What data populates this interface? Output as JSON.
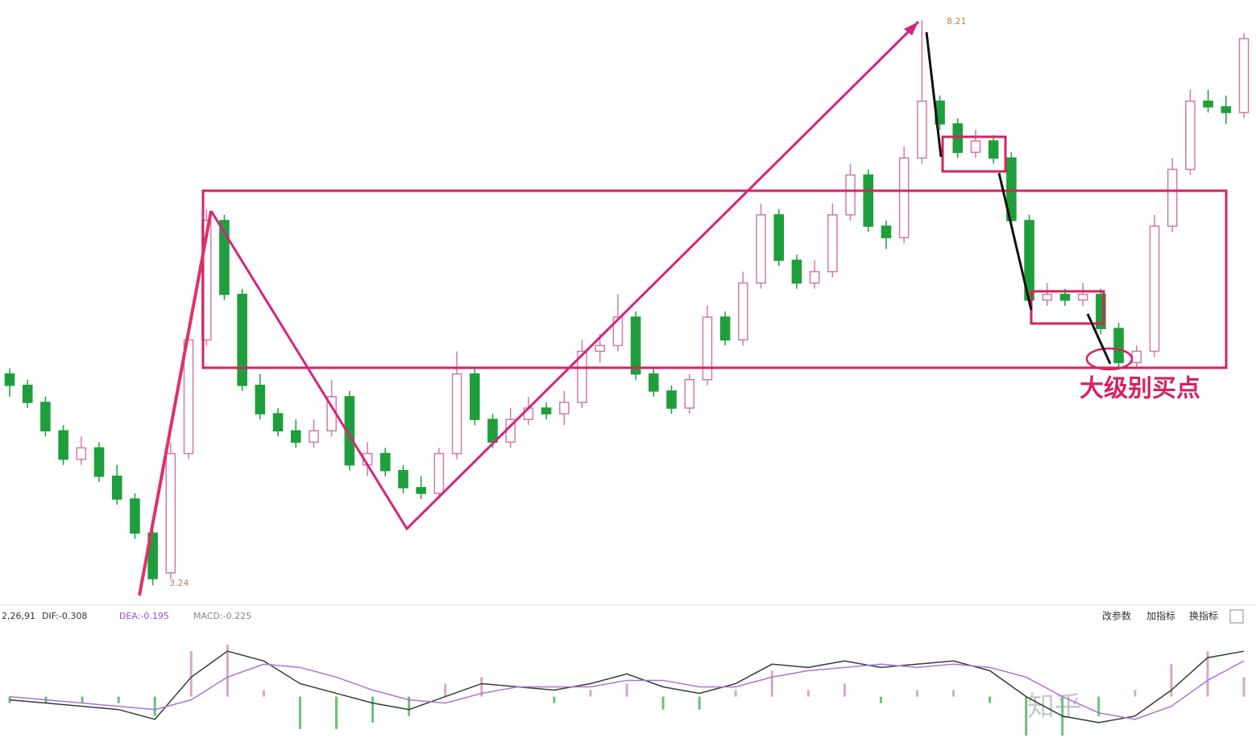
{
  "chart_data": [
    {
      "type": "candlestick",
      "ylim": [
        3.08,
        8.39
      ],
      "up_color": "#d07aa8",
      "down_color": "#1f9e3c",
      "ohlc": [
        [
          5.1,
          5.15,
          4.9,
          5.0
        ],
        [
          5.0,
          5.05,
          4.8,
          4.85
        ],
        [
          4.85,
          4.9,
          4.55,
          4.6
        ],
        [
          4.6,
          4.65,
          4.3,
          4.35
        ],
        [
          4.35,
          4.55,
          4.3,
          4.45
        ],
        [
          4.45,
          4.5,
          4.15,
          4.2
        ],
        [
          4.2,
          4.3,
          3.95,
          4.0
        ],
        [
          4.0,
          4.05,
          3.65,
          3.7
        ],
        [
          3.7,
          3.75,
          3.24,
          3.3
        ],
        [
          3.35,
          4.5,
          3.3,
          4.4
        ],
        [
          4.4,
          5.5,
          4.35,
          5.4
        ],
        [
          5.4,
          6.55,
          5.35,
          6.45
        ],
        [
          6.45,
          6.5,
          5.75,
          5.8
        ],
        [
          5.8,
          5.85,
          4.95,
          5.0
        ],
        [
          5.0,
          5.1,
          4.7,
          4.75
        ],
        [
          4.75,
          4.8,
          4.55,
          4.6
        ],
        [
          4.6,
          4.7,
          4.45,
          4.5
        ],
        [
          4.5,
          4.7,
          4.45,
          4.6
        ],
        [
          4.6,
          5.05,
          4.55,
          4.9
        ],
        [
          4.9,
          4.95,
          4.25,
          4.3
        ],
        [
          4.3,
          4.5,
          4.2,
          4.4
        ],
        [
          4.4,
          4.45,
          4.2,
          4.25
        ],
        [
          4.25,
          4.3,
          4.05,
          4.1
        ],
        [
          4.1,
          4.2,
          4.0,
          4.05
        ],
        [
          4.05,
          4.45,
          4.0,
          4.4
        ],
        [
          4.4,
          5.3,
          4.35,
          5.1
        ],
        [
          5.1,
          5.15,
          4.65,
          4.7
        ],
        [
          4.7,
          4.75,
          4.45,
          4.5
        ],
        [
          4.5,
          4.8,
          4.45,
          4.7
        ],
        [
          4.7,
          4.9,
          4.65,
          4.8
        ],
        [
          4.8,
          4.85,
          4.7,
          4.75
        ],
        [
          4.75,
          4.95,
          4.65,
          4.85
        ],
        [
          4.85,
          5.4,
          4.8,
          5.3
        ],
        [
          5.3,
          5.45,
          5.2,
          5.35
        ],
        [
          5.35,
          5.8,
          5.3,
          5.6
        ],
        [
          5.6,
          5.65,
          5.05,
          5.1
        ],
        [
          5.1,
          5.15,
          4.9,
          4.95
        ],
        [
          4.95,
          5.0,
          4.75,
          4.8
        ],
        [
          4.8,
          5.1,
          4.75,
          5.05
        ],
        [
          5.05,
          5.7,
          5.0,
          5.6
        ],
        [
          5.6,
          5.65,
          5.35,
          5.4
        ],
        [
          5.4,
          6.0,
          5.35,
          5.9
        ],
        [
          5.9,
          6.6,
          5.85,
          6.5
        ],
        [
          6.5,
          6.55,
          6.05,
          6.1
        ],
        [
          6.1,
          6.15,
          5.85,
          5.9
        ],
        [
          5.9,
          6.1,
          5.85,
          6.0
        ],
        [
          6.0,
          6.6,
          5.95,
          6.5
        ],
        [
          6.5,
          6.95,
          6.45,
          6.85
        ],
        [
          6.85,
          6.9,
          6.35,
          6.4
        ],
        [
          6.4,
          6.45,
          6.2,
          6.3
        ],
        [
          6.3,
          7.1,
          6.25,
          7.0
        ],
        [
          7.0,
          8.21,
          6.95,
          7.5
        ],
        [
          7.5,
          7.55,
          7.25,
          7.3
        ],
        [
          7.3,
          7.35,
          7.0,
          7.05
        ],
        [
          7.05,
          7.25,
          7.0,
          7.15
        ],
        [
          7.15,
          7.2,
          6.95,
          7.0
        ],
        [
          7.0,
          7.05,
          6.4,
          6.45
        ],
        [
          6.45,
          6.5,
          5.7,
          5.75
        ],
        [
          5.75,
          5.9,
          5.7,
          5.8
        ],
        [
          5.8,
          5.85,
          5.7,
          5.75
        ],
        [
          5.75,
          5.9,
          5.7,
          5.8
        ],
        [
          5.8,
          5.85,
          5.45,
          5.5
        ],
        [
          5.5,
          5.55,
          5.15,
          5.2
        ],
        [
          5.2,
          5.35,
          5.15,
          5.3
        ],
        [
          5.3,
          6.5,
          5.25,
          6.4
        ],
        [
          6.4,
          7.0,
          6.35,
          6.9
        ],
        [
          6.9,
          7.6,
          6.85,
          7.5
        ],
        [
          7.5,
          7.6,
          7.4,
          7.45
        ],
        [
          7.45,
          7.55,
          7.3,
          7.4
        ],
        [
          7.4,
          8.1,
          7.35,
          8.05
        ]
      ],
      "high_label": "8.21",
      "low_label": "3.24",
      "annotation": "大级别买点"
    },
    {
      "type": "macd",
      "params": "2,26,91",
      "readouts": [
        "DIF:-0.308",
        "DEA:-0.195",
        "MACD:-0.225"
      ],
      "buttons": [
        "改参数",
        "加指标",
        "换指标"
      ],
      "watermark": "知乎",
      "ylim": [
        -0.7,
        1.0
      ],
      "series": [
        {
          "name": "DIF",
          "color": "#2f3f3a",
          "values": [
            -0.05,
            -0.1,
            -0.15,
            -0.2,
            -0.35,
            0.3,
            0.7,
            0.55,
            0.2,
            0.05,
            -0.1,
            -0.2,
            0.0,
            0.2,
            0.15,
            0.1,
            0.2,
            0.35,
            0.15,
            0.05,
            0.2,
            0.5,
            0.45,
            0.55,
            0.45,
            0.5,
            0.55,
            0.4,
            0.0,
            -0.3,
            -0.4,
            -0.3,
            0.1,
            0.6,
            0.7
          ]
        },
        {
          "name": "DEA",
          "color": "#b070d8",
          "values": [
            0.0,
            -0.05,
            -0.1,
            -0.15,
            -0.2,
            -0.05,
            0.3,
            0.5,
            0.45,
            0.3,
            0.1,
            -0.05,
            -0.1,
            0.05,
            0.15,
            0.15,
            0.15,
            0.25,
            0.25,
            0.15,
            0.15,
            0.3,
            0.4,
            0.45,
            0.5,
            0.45,
            0.5,
            0.45,
            0.3,
            0.0,
            -0.25,
            -0.35,
            -0.15,
            0.25,
            0.55
          ]
        }
      ],
      "histogram": [
        -0.1,
        -0.1,
        -0.1,
        -0.1,
        -0.3,
        0.7,
        0.8,
        0.1,
        -0.5,
        -0.5,
        -0.4,
        -0.3,
        0.2,
        0.3,
        0.0,
        -0.1,
        0.1,
        0.2,
        -0.2,
        -0.2,
        0.1,
        0.4,
        0.1,
        0.2,
        -0.1,
        0.1,
        0.1,
        -0.1,
        -0.6,
        -0.6,
        -0.3,
        0.1,
        0.5,
        0.7,
        0.3
      ],
      "hist_up_color": "#d9a6c8",
      "hist_down_color": "#6cc07a"
    }
  ]
}
